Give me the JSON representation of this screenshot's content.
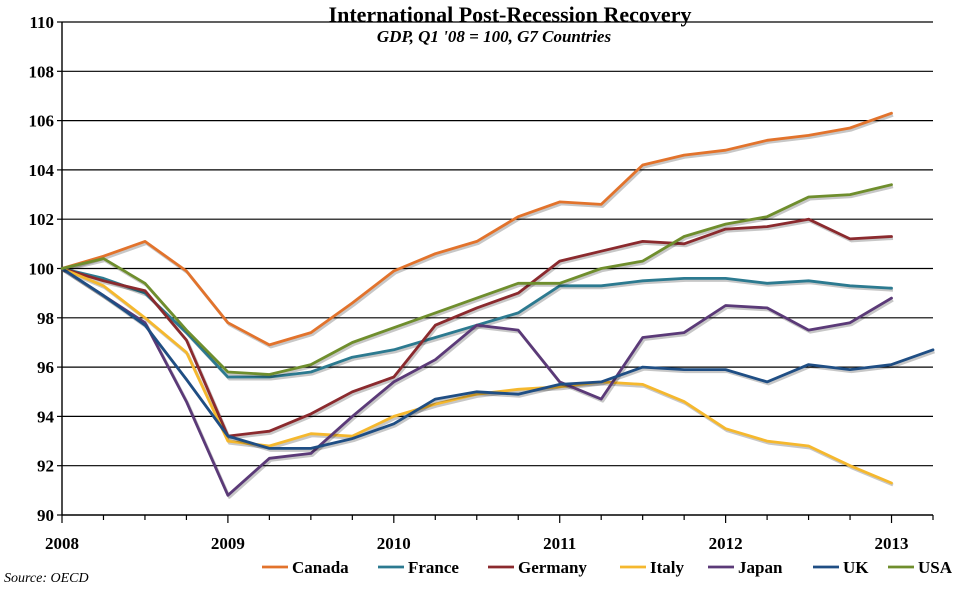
{
  "chart_data": {
    "type": "line",
    "title": "International Post-Recession Recovery",
    "subtitle": "GDP, Q1 '08 = 100, G7 Countries",
    "source": "Source: OECD",
    "xlabel": "",
    "ylabel": "",
    "ylim": [
      90,
      110
    ],
    "yticks": [
      "90",
      "92",
      "94",
      "96",
      "98",
      "100",
      "102",
      "104",
      "106",
      "108",
      "110"
    ],
    "xlim": [
      2008,
      2013.25
    ],
    "xticks": [
      "2008",
      "2009",
      "2010",
      "2011",
      "2012",
      "2013"
    ],
    "grid": true,
    "legend_position": "bottom",
    "x": [
      2008,
      2008.25,
      2008.5,
      2008.75,
      2009,
      2009.25,
      2009.5,
      2009.75,
      2010,
      2010.25,
      2010.5,
      2010.75,
      2011,
      2011.25,
      2011.5,
      2011.75,
      2012,
      2012.25,
      2012.5,
      2012.75,
      2013,
      2013.25
    ],
    "series": [
      {
        "name": "Canada",
        "color": "#e2732c",
        "values": [
          100,
          100.5,
          101.1,
          99.9,
          97.8,
          96.9,
          97.4,
          98.6,
          99.9,
          100.6,
          101.1,
          102.1,
          102.7,
          102.6,
          104.2,
          104.6,
          104.8,
          105.2,
          105.4,
          105.7,
          106.3,
          null
        ]
      },
      {
        "name": "France",
        "color": "#2c7a90",
        "values": [
          100,
          99.6,
          99.0,
          97.4,
          95.6,
          95.6,
          95.8,
          96.4,
          96.7,
          97.2,
          97.7,
          98.2,
          99.3,
          99.3,
          99.5,
          99.6,
          99.6,
          99.4,
          99.5,
          99.3,
          99.2,
          null
        ]
      },
      {
        "name": "Germany",
        "color": "#8b2a2e",
        "values": [
          100,
          99.5,
          99.1,
          97.1,
          93.2,
          93.4,
          94.1,
          95.0,
          95.6,
          97.7,
          98.4,
          99.0,
          100.3,
          100.7,
          101.1,
          101.0,
          101.6,
          101.7,
          102.0,
          101.2,
          101.3,
          null
        ]
      },
      {
        "name": "Italy",
        "color": "#f5b82e",
        "values": [
          100,
          99.3,
          98.0,
          96.6,
          93.0,
          92.8,
          93.3,
          93.2,
          94.0,
          94.5,
          94.9,
          95.1,
          95.2,
          95.4,
          95.3,
          94.6,
          93.5,
          93.0,
          92.8,
          92.0,
          91.3,
          null
        ]
      },
      {
        "name": "Japan",
        "color": "#5b3a78",
        "values": [
          100,
          98.9,
          97.8,
          94.6,
          90.8,
          92.3,
          92.5,
          94.0,
          95.4,
          96.3,
          97.7,
          97.5,
          95.4,
          94.7,
          97.2,
          97.4,
          98.5,
          98.4,
          97.5,
          97.8,
          98.8,
          null
        ]
      },
      {
        "name": "UK",
        "color": "#1f4e84",
        "values": [
          100,
          98.9,
          97.7,
          95.5,
          93.2,
          92.7,
          92.7,
          93.1,
          93.7,
          94.7,
          95.0,
          94.9,
          95.3,
          95.4,
          96.0,
          95.9,
          95.9,
          95.4,
          96.1,
          95.9,
          96.1,
          96.7
        ]
      },
      {
        "name": "USA",
        "color": "#6f8e2d",
        "values": [
          100,
          100.4,
          99.4,
          97.5,
          95.8,
          95.7,
          96.1,
          97.0,
          97.6,
          98.2,
          98.8,
          99.4,
          99.4,
          100.0,
          100.3,
          101.3,
          101.8,
          102.1,
          102.9,
          103.0,
          103.4,
          null
        ]
      }
    ]
  }
}
